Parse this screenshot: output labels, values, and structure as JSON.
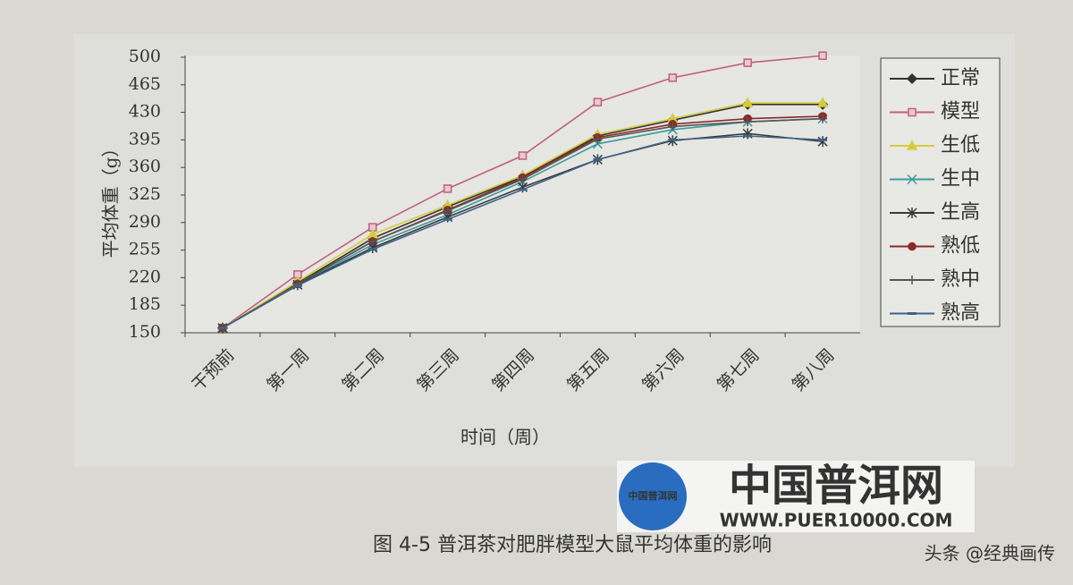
{
  "chart_data": {
    "type": "line",
    "categories": [
      "干预前",
      "第一周",
      "第二周",
      "第三周",
      "第四周",
      "第五周",
      "第六周",
      "第七周",
      "第八周"
    ],
    "y_label": "平均体重（g）",
    "x_label": "时间（周）",
    "ylim": [
      150,
      500
    ],
    "yticks": [
      150,
      185,
      220,
      255,
      290,
      325,
      360,
      395,
      430,
      465,
      500
    ],
    "legend": "right",
    "series": [
      {
        "name": "正常",
        "color": "#333333",
        "marker": "diamond",
        "values": [
          156,
          213,
          270,
          310,
          348,
          400,
          420,
          440,
          440
        ]
      },
      {
        "name": "模型",
        "color": "#c0607e",
        "marker": "square",
        "values": [
          156,
          224,
          284,
          333,
          375,
          443,
          474,
          493,
          502
        ]
      },
      {
        "name": "生低",
        "color": "#d4cc3c",
        "marker": "triangle",
        "values": [
          156,
          215,
          275,
          312,
          350,
          402,
          422,
          442,
          442
        ]
      },
      {
        "name": "生中",
        "color": "#3c9c9c",
        "marker": "x",
        "values": [
          156,
          211,
          262,
          300,
          342,
          390,
          408,
          418,
          422
        ]
      },
      {
        "name": "生高",
        "color": "#3a3a3a",
        "marker": "star",
        "values": [
          156,
          211,
          258,
          297,
          335,
          370,
          394,
          403,
          393
        ]
      },
      {
        "name": "熟低",
        "color": "#8b2a2a",
        "marker": "circle",
        "values": [
          156,
          212,
          266,
          306,
          347,
          398,
          415,
          422,
          425
        ]
      },
      {
        "name": "熟中",
        "color": "#555555",
        "marker": "plus",
        "values": [
          156,
          212,
          266,
          305,
          345,
          396,
          412,
          418,
          422
        ]
      },
      {
        "name": "熟高",
        "color": "#3f6488",
        "marker": "dash",
        "values": [
          156,
          210,
          256,
          294,
          332,
          370,
          395,
          400,
          395
        ]
      }
    ],
    "caption": "图 4-5 普洱茶对肥胖模型大鼠平均体重的影响",
    "watermark": {
      "logo": "中国普洱网",
      "title": "中国普洱网",
      "url": "WWW.PUER10000.COM"
    },
    "credit": "头条 @经典画传"
  }
}
